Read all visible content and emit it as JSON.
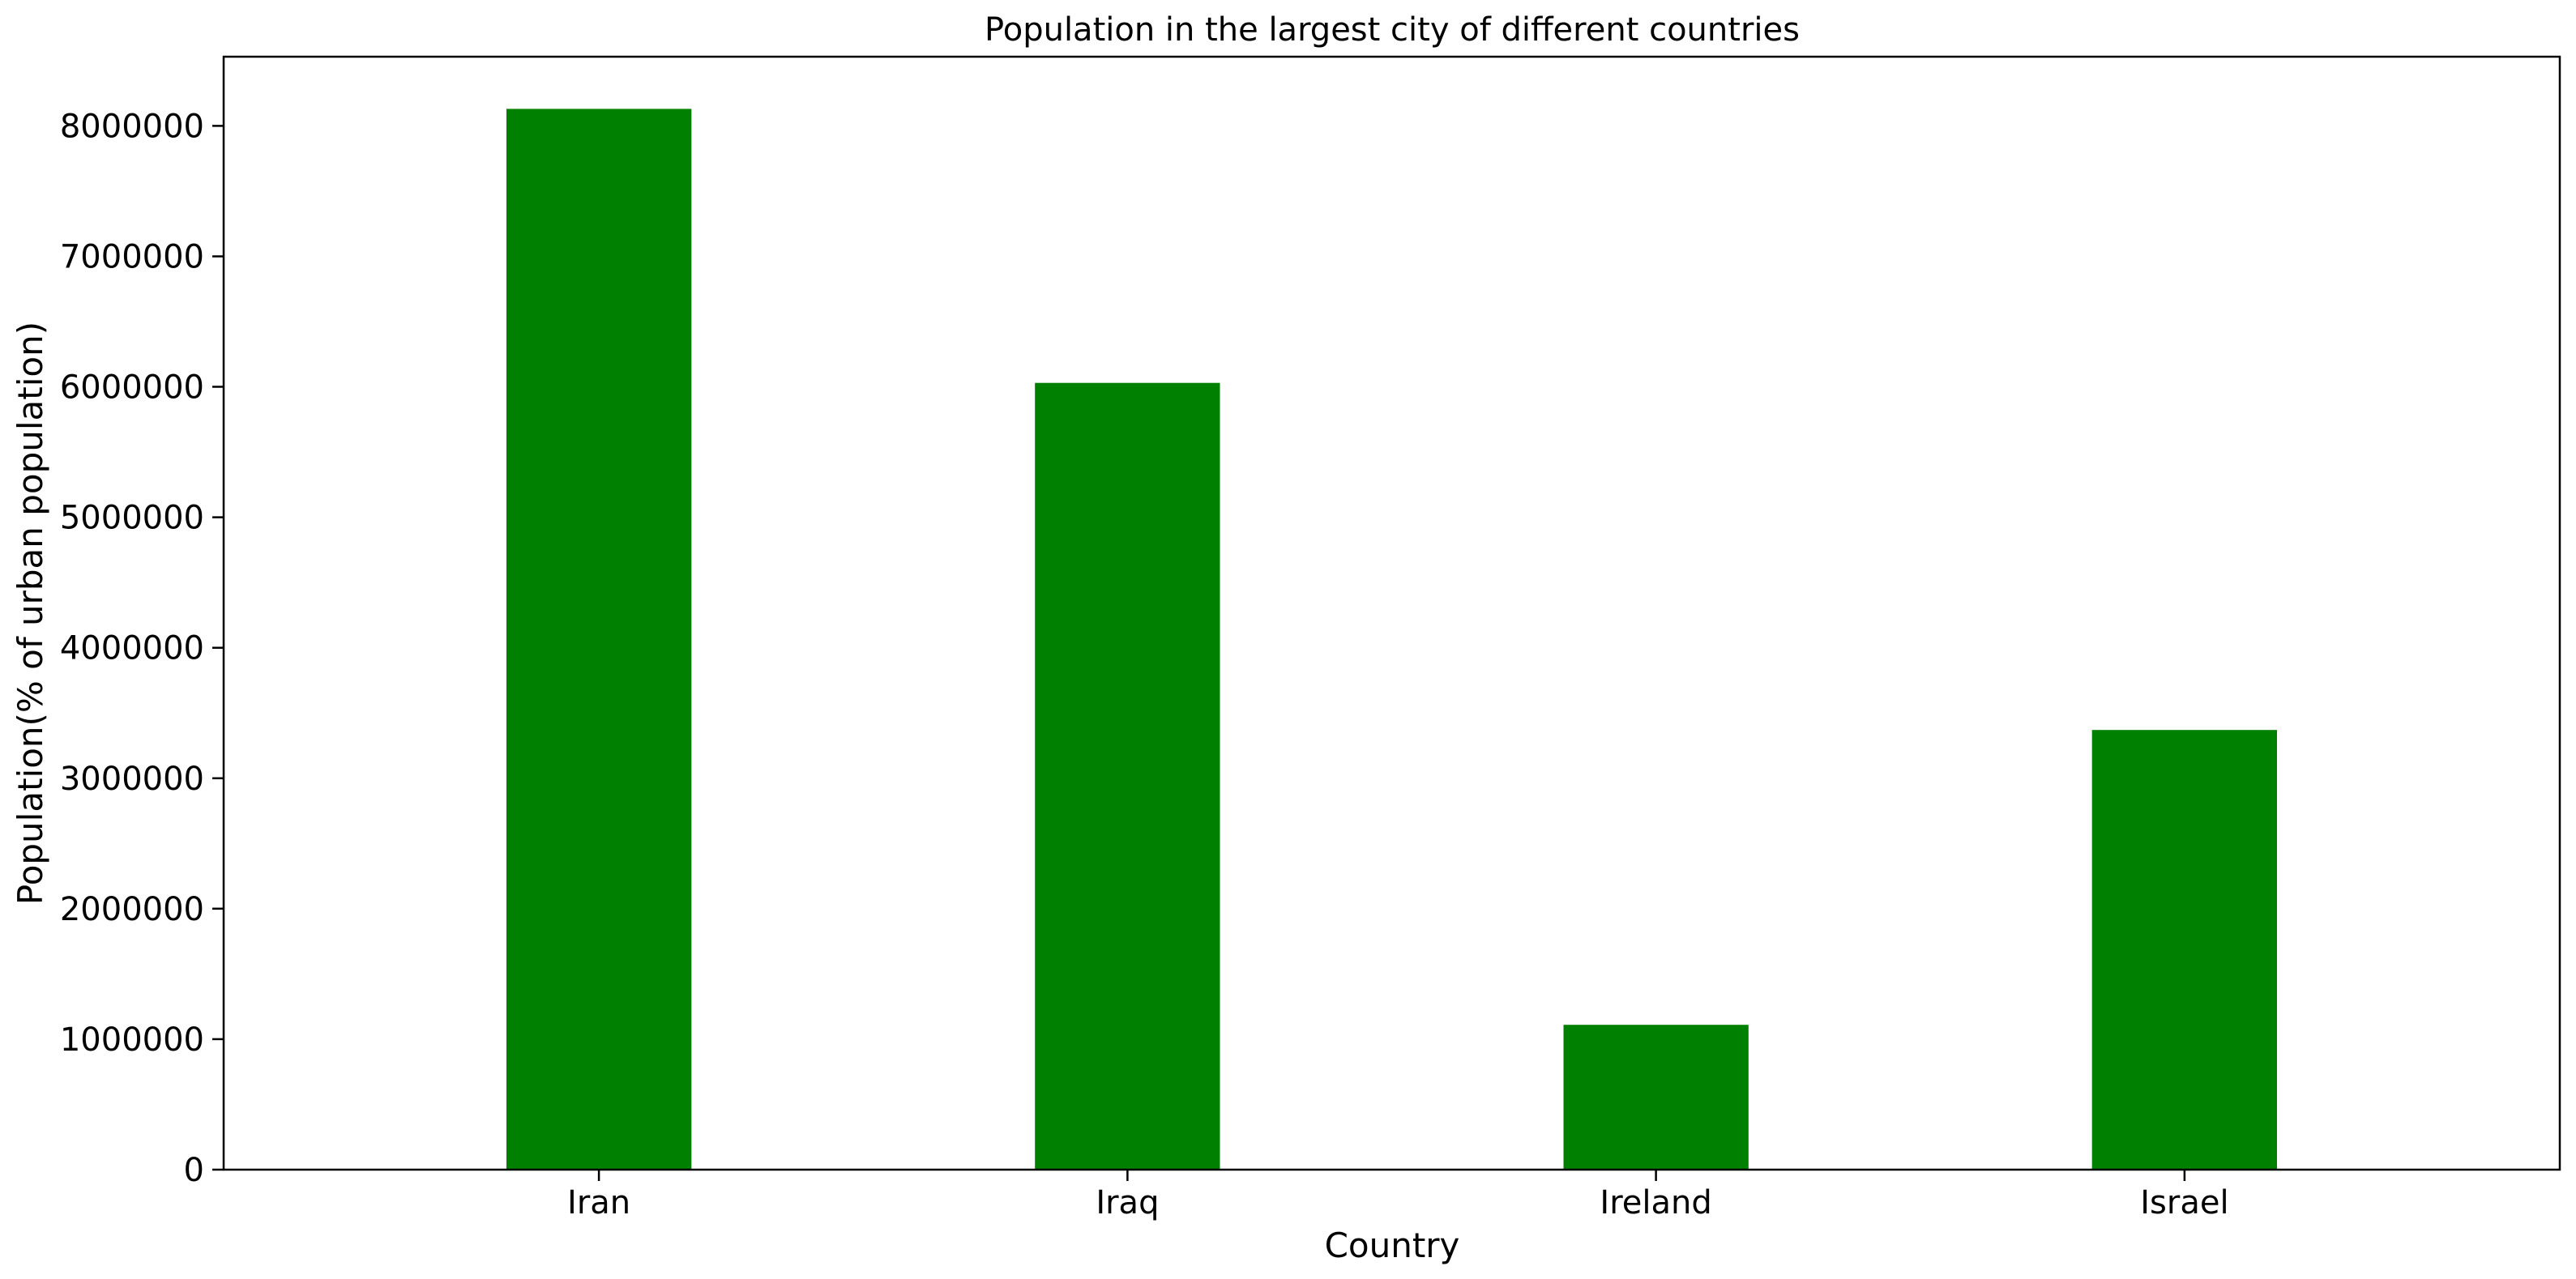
{
  "chart_data": {
    "type": "bar",
    "title": "Population in the largest city of different countries",
    "xlabel": "Country",
    "ylabel": "Population(% of urban population)",
    "categories": [
      "Iran",
      "Iraq",
      "Ireland",
      "Israel"
    ],
    "values": [
      8130000,
      6030000,
      1110000,
      3370000
    ],
    "ylim": [
      0,
      8530000
    ],
    "yticks": [
      0,
      1000000,
      2000000,
      3000000,
      4000000,
      5000000,
      6000000,
      7000000,
      8000000
    ],
    "ytick_labels": [
      "0",
      "1000000",
      "2000000",
      "3000000",
      "4000000",
      "5000000",
      "6000000",
      "7000000",
      "8000000"
    ],
    "bar_color": "#008000",
    "grid": false,
    "legend": "none"
  }
}
